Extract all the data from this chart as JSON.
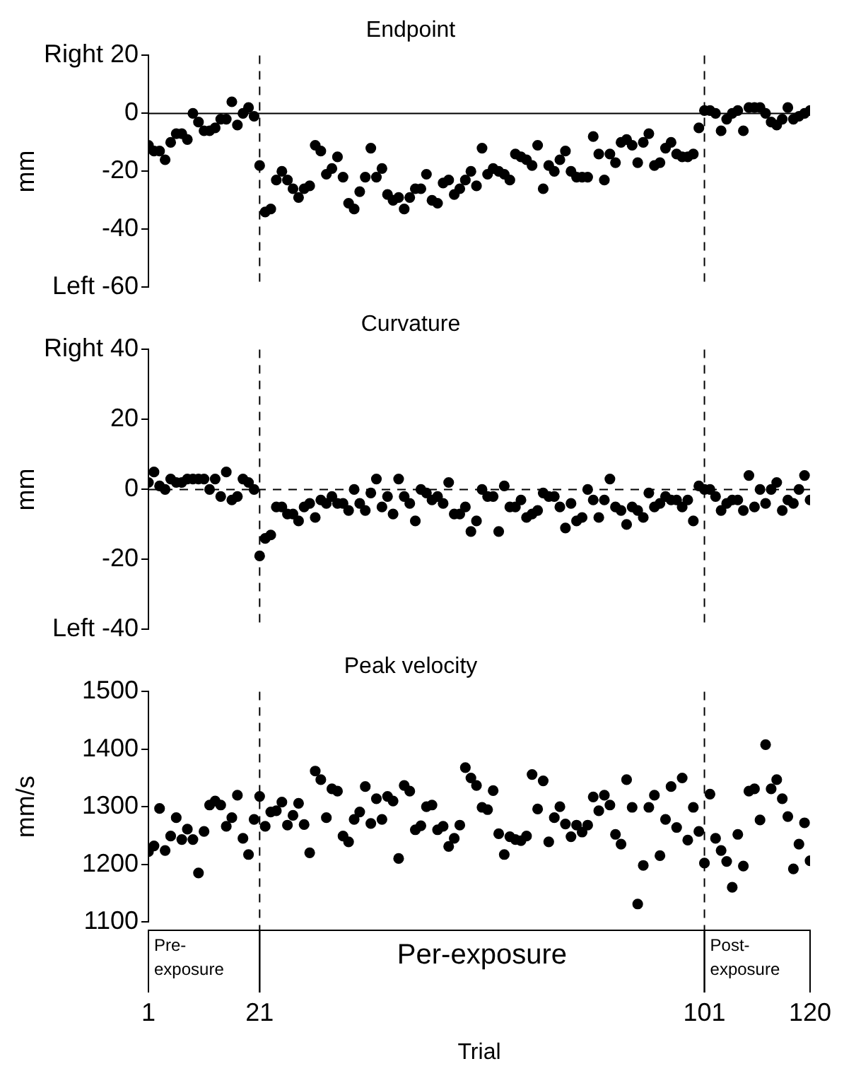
{
  "chart_data": [
    {
      "type": "scatter",
      "title": "Endpoint",
      "ylabel": "mm",
      "xlim": [
        1,
        120
      ],
      "ylim": [
        -60,
        20
      ],
      "yticks": [
        {
          "value": 20,
          "label": "Right 20"
        },
        0,
        -20,
        -40,
        {
          "value": -60,
          "label": "Left -60"
        }
      ],
      "tick_labels": "y",
      "grid": false,
      "legend": false,
      "marker": "circle",
      "x": [
        1,
        2,
        3,
        4,
        5,
        6,
        7,
        8,
        9,
        10,
        11,
        12,
        13,
        14,
        15,
        16,
        17,
        18,
        19,
        20,
        21,
        22,
        23,
        24,
        25,
        26,
        27,
        28,
        29,
        30,
        31,
        32,
        33,
        34,
        35,
        36,
        37,
        38,
        39,
        40,
        41,
        42,
        43,
        44,
        45,
        46,
        47,
        48,
        49,
        50,
        51,
        52,
        53,
        54,
        55,
        56,
        57,
        58,
        59,
        60,
        61,
        62,
        63,
        64,
        65,
        66,
        67,
        68,
        69,
        70,
        71,
        72,
        73,
        74,
        75,
        76,
        77,
        78,
        79,
        80,
        81,
        82,
        83,
        84,
        85,
        86,
        87,
        88,
        89,
        90,
        91,
        92,
        93,
        94,
        95,
        96,
        97,
        98,
        99,
        100,
        101,
        102,
        103,
        104,
        105,
        106,
        107,
        108,
        109,
        110,
        111,
        112,
        113,
        114,
        115,
        116,
        117,
        118,
        119,
        120
      ],
      "series": [
        {
          "color": "#000000",
          "values": [
            -11,
            -13,
            -13,
            -16,
            -10,
            -7,
            -7,
            -9,
            0,
            -3,
            -6,
            -6,
            -5,
            -2,
            -2,
            4,
            -4,
            0,
            2,
            -1,
            -18,
            -34,
            -33,
            -23,
            -20,
            -23,
            -26,
            -29,
            -26,
            -25,
            -11,
            -13,
            -21,
            -19,
            -15,
            -22,
            -31,
            -33,
            -27,
            -22,
            -12,
            -22,
            -19,
            -28,
            -30,
            -29,
            -33,
            -29,
            -26,
            -26,
            -21,
            -30,
            -31,
            -24,
            -23,
            -28,
            -26,
            -23,
            -20,
            -25,
            -12,
            -21,
            -19,
            -20,
            -21,
            -23,
            -14,
            -15,
            -16,
            -18,
            -11,
            -26,
            -18,
            -20,
            -16,
            -13,
            -20,
            -22,
            -22,
            -22,
            -8,
            -14,
            -23,
            -14,
            -17,
            -10,
            -9,
            -11,
            -17,
            -10,
            -7,
            -18,
            -17,
            -12,
            -10,
            -14,
            -15,
            -15,
            -14,
            -5,
            1,
            1,
            0,
            -6,
            -2,
            0,
            1,
            -6,
            2,
            2,
            2,
            0,
            -3,
            -4,
            -2,
            2,
            -2,
            -1,
            0,
            1
          ]
        }
      ],
      "ref_lines": [
        {
          "axis": "x",
          "value": 21,
          "line_style": "dashed"
        },
        {
          "axis": "x",
          "value": 101,
          "line_style": "dashed"
        },
        {
          "axis": "y",
          "value": 0,
          "line_style": "solid"
        }
      ]
    },
    {
      "type": "scatter",
      "title": "Curvature",
      "ylabel": "mm",
      "xlim": [
        1,
        120
      ],
      "ylim": [
        -40,
        40
      ],
      "yticks": [
        {
          "value": 40,
          "label": "Right 40"
        },
        20,
        0,
        -20,
        {
          "value": -40,
          "label": "Left -40"
        }
      ],
      "tick_labels": "y",
      "grid": false,
      "legend": false,
      "marker": "circle",
      "x": [
        1,
        2,
        3,
        4,
        5,
        6,
        7,
        8,
        9,
        10,
        11,
        12,
        13,
        14,
        15,
        16,
        17,
        18,
        19,
        20,
        21,
        22,
        23,
        24,
        25,
        26,
        27,
        28,
        29,
        30,
        31,
        32,
        33,
        34,
        35,
        36,
        37,
        38,
        39,
        40,
        41,
        42,
        43,
        44,
        45,
        46,
        47,
        48,
        49,
        50,
        51,
        52,
        53,
        54,
        55,
        56,
        57,
        58,
        59,
        60,
        61,
        62,
        63,
        64,
        65,
        66,
        67,
        68,
        69,
        70,
        71,
        72,
        73,
        74,
        75,
        76,
        77,
        78,
        79,
        80,
        81,
        82,
        83,
        84,
        85,
        86,
        87,
        88,
        89,
        90,
        91,
        92,
        93,
        94,
        95,
        96,
        97,
        98,
        99,
        100,
        101,
        102,
        103,
        104,
        105,
        106,
        107,
        108,
        109,
        110,
        111,
        112,
        113,
        114,
        115,
        116,
        117,
        118,
        119,
        120
      ],
      "series": [
        {
          "color": "#000000",
          "values": [
            2,
            5,
            1,
            0,
            3,
            2,
            2,
            3,
            3,
            3,
            3,
            0,
            3,
            -2,
            5,
            -3,
            -2,
            3,
            2,
            0,
            -19,
            -14,
            -13,
            -5,
            -5,
            -7,
            -7,
            -9,
            -5,
            -4,
            -8,
            -3,
            -4,
            -2,
            -4,
            -4,
            -6,
            0,
            -4,
            -6,
            -1,
            3,
            -5,
            -2,
            -7,
            3,
            -2,
            -4,
            -9,
            0,
            -1,
            -3,
            -2,
            -4,
            2,
            -7,
            -7,
            -5,
            -12,
            -9,
            0,
            -2,
            -2,
            -12,
            1,
            -5,
            -5,
            -3,
            -8,
            -7,
            -6,
            -1,
            -2,
            -2,
            -5,
            -11,
            -4,
            -9,
            -8,
            0,
            -3,
            -8,
            -3,
            3,
            -5,
            -6,
            -10,
            -5,
            -6,
            -8,
            -1,
            -5,
            -4,
            -2,
            -3,
            -3,
            -5,
            -3,
            -9,
            1,
            0,
            0,
            -2,
            -6,
            -4,
            -3,
            -3,
            -6,
            4,
            -5,
            0,
            -4,
            0,
            2,
            -6,
            -3,
            -4,
            0,
            4,
            -3
          ]
        }
      ],
      "ref_lines": [
        {
          "axis": "x",
          "value": 21,
          "line_style": "dashed"
        },
        {
          "axis": "x",
          "value": 101,
          "line_style": "dashed"
        },
        {
          "axis": "y",
          "value": 0,
          "line_style": "dashed"
        }
      ]
    },
    {
      "type": "scatter",
      "title": "Peak velocity",
      "ylabel": "mm/s",
      "xlabel": "Trial",
      "xlim": [
        1,
        120
      ],
      "xticks": [
        1,
        21,
        101,
        120
      ],
      "ylim": [
        1100,
        1500
      ],
      "yticks": [
        1100,
        1200,
        1300,
        1400,
        1500
      ],
      "grid": false,
      "legend": false,
      "marker": "circle",
      "x": [
        1,
        2,
        3,
        4,
        5,
        6,
        7,
        8,
        9,
        10,
        11,
        12,
        13,
        14,
        15,
        16,
        17,
        18,
        19,
        20,
        21,
        22,
        23,
        24,
        25,
        26,
        27,
        28,
        29,
        30,
        31,
        32,
        33,
        34,
        35,
        36,
        37,
        38,
        39,
        40,
        41,
        42,
        43,
        44,
        45,
        46,
        47,
        48,
        49,
        50,
        51,
        52,
        53,
        54,
        55,
        56,
        57,
        58,
        59,
        60,
        61,
        62,
        63,
        64,
        65,
        66,
        67,
        68,
        69,
        70,
        71,
        72,
        73,
        74,
        75,
        76,
        77,
        78,
        79,
        80,
        81,
        82,
        83,
        84,
        85,
        86,
        87,
        88,
        89,
        90,
        91,
        92,
        93,
        94,
        95,
        96,
        97,
        98,
        99,
        100,
        101,
        102,
        103,
        104,
        105,
        106,
        107,
        108,
        109,
        110,
        111,
        112,
        113,
        114,
        115,
        116,
        117,
        118,
        119,
        120
      ],
      "series": [
        {
          "color": "#000000",
          "values": [
            1222,
            1232,
            1297,
            1224,
            1249,
            1281,
            1243,
            1261,
            1243,
            1185,
            1257,
            1303,
            1310,
            1303,
            1266,
            1281,
            1320,
            1245,
            1217,
            1278,
            1318,
            1266,
            1291,
            1293,
            1308,
            1268,
            1285,
            1306,
            1269,
            1220,
            1362,
            1347,
            1281,
            1331,
            1327,
            1249,
            1239,
            1278,
            1291,
            1335,
            1271,
            1314,
            1278,
            1318,
            1310,
            1210,
            1337,
            1327,
            1260,
            1267,
            1300,
            1303,
            1260,
            1266,
            1231,
            1245,
            1268,
            1368,
            1350,
            1337,
            1299,
            1295,
            1328,
            1253,
            1217,
            1248,
            1243,
            1241,
            1249,
            1356,
            1296,
            1345,
            1239,
            1281,
            1300,
            1270,
            1248,
            1268,
            1256,
            1268,
            1317,
            1293,
            1320,
            1303,
            1252,
            1235,
            1347,
            1299,
            1131,
            1198,
            1299,
            1320,
            1215,
            1278,
            1335,
            1264,
            1350,
            1242,
            1299,
            1257,
            1202,
            1322,
            1245,
            1224,
            1205,
            1160,
            1252,
            1197,
            1327,
            1331,
            1277,
            1408,
            1331,
            1347,
            1314,
            1283,
            1192,
            1235,
            1272,
            1206
          ]
        }
      ],
      "ref_lines": [
        {
          "axis": "x",
          "value": 21,
          "line_style": "dashed"
        },
        {
          "axis": "x",
          "value": 101,
          "line_style": "dashed"
        }
      ],
      "annotations": [
        "Pre-exposure",
        "Per-exposure",
        "Post-exposure"
      ]
    }
  ]
}
